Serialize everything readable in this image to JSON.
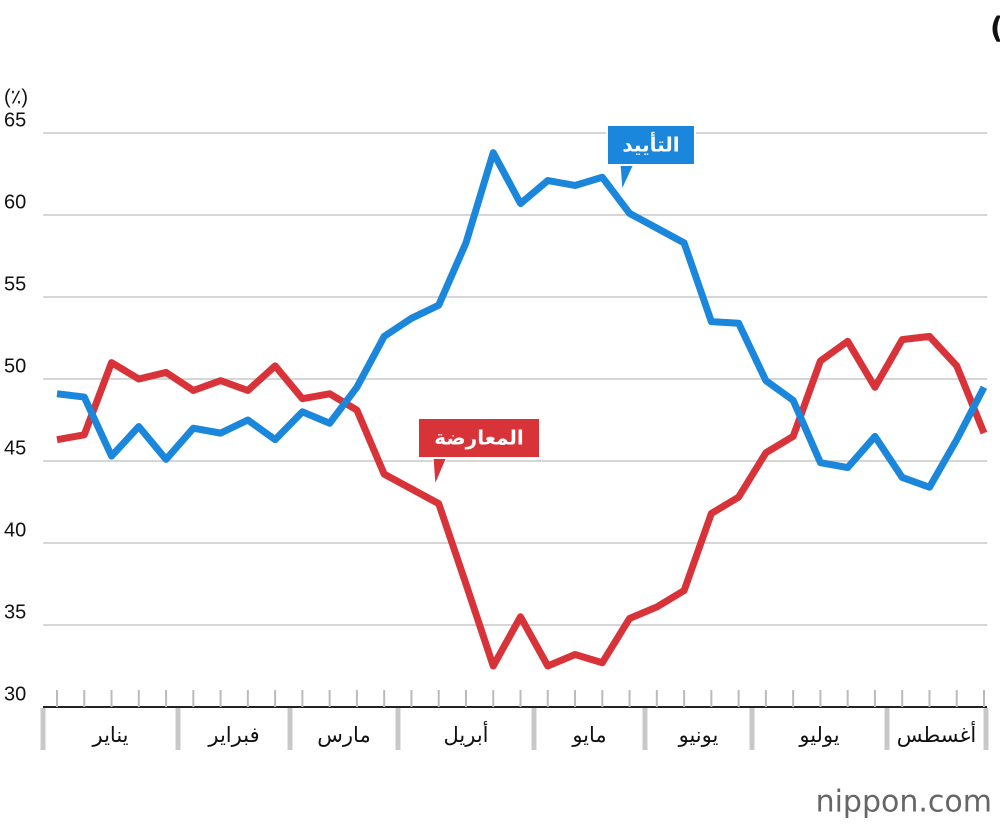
{
  "chart_data": {
    "type": "line",
    "title": "مستويات التأييد لمون جاي إن (ريلميتر، ويكلي)",
    "y_label": "(٪)",
    "months": [
      "يناير",
      "فبراير",
      "مارس",
      "أبريل",
      "مايو",
      "يونيو",
      "يوليو",
      "أغسطس"
    ],
    "ylim": [
      30,
      65
    ],
    "yticks": [
      30,
      35,
      40,
      45,
      50,
      55,
      60,
      65
    ],
    "grid": true,
    "series": [
      {
        "name": "التأييد",
        "color": "#1a87dc",
        "values": [
          49.1,
          48.9,
          45.3,
          47.1,
          45.1,
          47.0,
          46.7,
          47.5,
          46.3,
          48.0,
          47.3,
          49.5,
          52.6,
          53.7,
          54.5,
          58.3,
          63.8,
          60.7,
          62.1,
          61.8,
          62.3,
          60.1,
          59.2,
          58.3,
          53.5,
          53.4,
          49.9,
          48.7,
          44.9,
          44.6,
          46.5,
          44.0,
          43.4,
          46.3,
          49.5
        ]
      },
      {
        "name": "المعارضة",
        "color": "#d9333a",
        "values": [
          46.3,
          46.6,
          51.0,
          50.0,
          50.4,
          49.3,
          49.9,
          49.3,
          50.8,
          48.8,
          49.1,
          48.1,
          44.2,
          43.3,
          42.4,
          37.5,
          32.5,
          35.5,
          32.5,
          33.2,
          32.7,
          35.4,
          36.1,
          37.1,
          41.8,
          42.8,
          45.5,
          46.5,
          51.1,
          52.3,
          49.5,
          52.4,
          52.6,
          50.8,
          46.7
        ]
      }
    ],
    "source": "nippon.com"
  }
}
